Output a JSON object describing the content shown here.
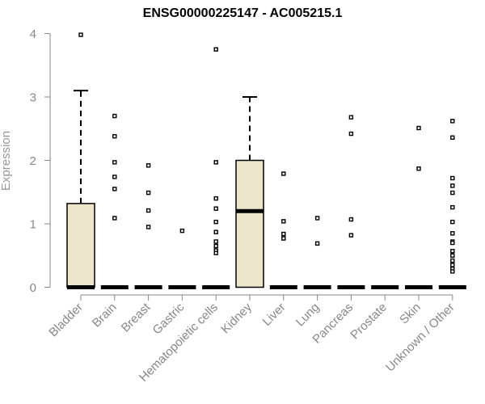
{
  "chart_data": {
    "type": "box",
    "title": "ENSG00000225147 - AC005215.1",
    "xlabel": "",
    "ylabel": "Expression",
    "ylim": [
      0,
      4
    ],
    "yticks": [
      0,
      1,
      2,
      3,
      4
    ],
    "categories": [
      "Bladder",
      "Brain",
      "Breast",
      "Gastric",
      "Hematopoietic cells",
      "Kidney",
      "Liver",
      "Lung",
      "Pancreas",
      "Prostate",
      "Skin",
      "Unknown / Other"
    ],
    "boxes": [
      {
        "category": "Bladder",
        "min": 0,
        "q1": 0,
        "median": 0,
        "q3": 1.32,
        "max": 3.1,
        "outliers": [
          3.98
        ]
      },
      {
        "category": "Brain",
        "min": 0,
        "q1": 0,
        "median": 0,
        "q3": 0,
        "max": 0,
        "outliers": [
          2.7,
          2.38,
          1.97,
          1.74,
          1.55,
          1.09
        ]
      },
      {
        "category": "Breast",
        "min": 0,
        "q1": 0,
        "median": 0,
        "q3": 0,
        "max": 0,
        "outliers": [
          1.92,
          1.49,
          1.21,
          0.95
        ]
      },
      {
        "category": "Gastric",
        "min": 0,
        "q1": 0,
        "median": 0,
        "q3": 0,
        "max": 0,
        "outliers": [
          0.89
        ]
      },
      {
        "category": "Hematopoietic cells",
        "min": 0,
        "q1": 0,
        "median": 0,
        "q3": 0,
        "max": 0,
        "outliers": [
          3.75,
          1.97,
          1.4,
          1.24,
          1.03,
          0.87,
          0.72,
          0.65,
          0.58,
          0.54
        ]
      },
      {
        "category": "Kidney",
        "min": 0,
        "q1": 0,
        "median": 1.2,
        "q3": 2.0,
        "max": 3.0,
        "outliers": []
      },
      {
        "category": "Liver",
        "min": 0,
        "q1": 0,
        "median": 0,
        "q3": 0,
        "max": 0,
        "outliers": [
          1.79,
          1.04,
          0.84,
          0.77
        ]
      },
      {
        "category": "Lung",
        "min": 0,
        "q1": 0,
        "median": 0,
        "q3": 0,
        "max": 0,
        "outliers": [
          1.09,
          0.69
        ]
      },
      {
        "category": "Pancreas",
        "min": 0,
        "q1": 0,
        "median": 0,
        "q3": 0,
        "max": 0,
        "outliers": [
          2.68,
          2.42,
          1.07,
          0.82
        ]
      },
      {
        "category": "Prostate",
        "min": 0,
        "q1": 0,
        "median": 0,
        "q3": 0,
        "max": 0,
        "outliers": []
      },
      {
        "category": "Skin",
        "min": 0,
        "q1": 0,
        "median": 0,
        "q3": 0,
        "max": 0,
        "outliers": [
          2.51,
          1.87
        ]
      },
      {
        "category": "Unknown / Other",
        "min": 0,
        "q1": 0,
        "median": 0,
        "q3": 0,
        "max": 0,
        "outliers": [
          2.62,
          2.36,
          1.72,
          1.6,
          1.49,
          1.26,
          1.03,
          0.85,
          0.72,
          0.7,
          0.57,
          0.5,
          0.42,
          0.35,
          0.29,
          0.25
        ]
      }
    ],
    "colors": {
      "box_fill": "#ede6cd",
      "box_stroke": "#000000",
      "axis": "#888888",
      "tick_label": "#888888",
      "title": "#000000"
    },
    "grid": false,
    "legend": "none"
  }
}
